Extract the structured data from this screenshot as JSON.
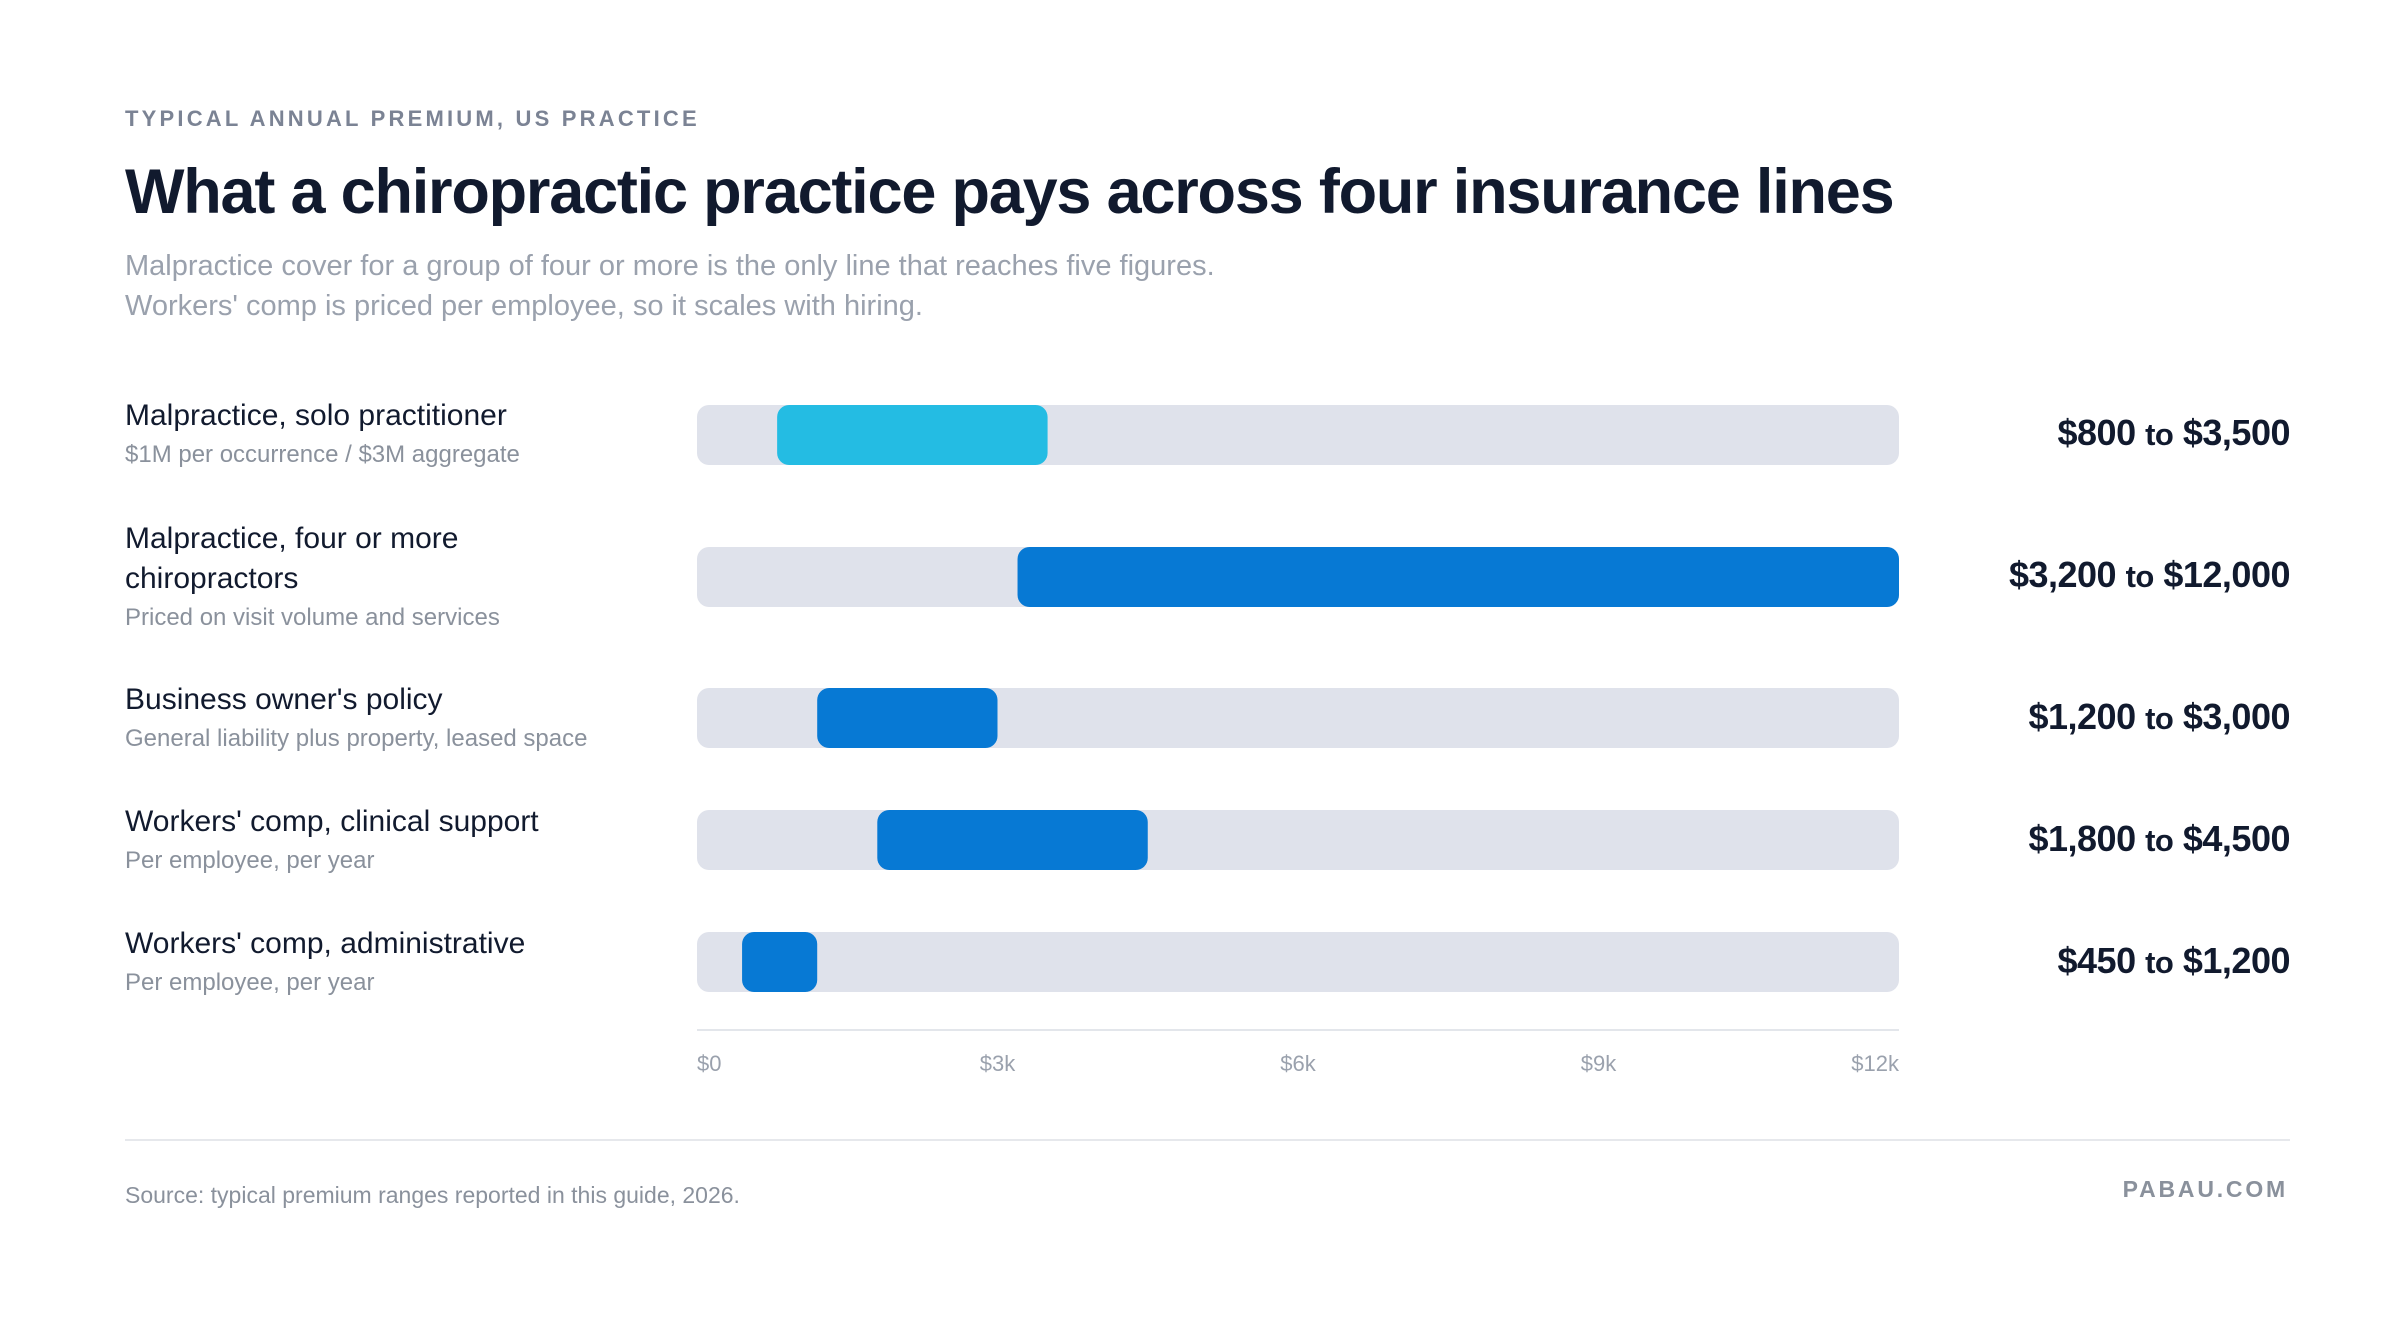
{
  "eyebrow": "TYPICAL ANNUAL PREMIUM, US PRACTICE",
  "title": "What a chiropractic practice pays across four insurance lines",
  "subtitle": [
    "Malpractice cover for a group of four or more is the only line that reaches five figures.",
    "Workers' comp is priced per employee, so it scales with hiring."
  ],
  "rows": [
    {
      "label": "Malpractice, solo practitioner",
      "sub": "$1M per occurrence / $3M aggregate",
      "from": "$800",
      "joiner": "to",
      "to": "$3,500"
    },
    {
      "label": "Malpractice, four or more chiropractors",
      "sub": "Priced on visit volume and services",
      "from": "$3,200",
      "joiner": "to",
      "to": "$12,000"
    },
    {
      "label": "Business owner's policy",
      "sub": "General liability plus property, leased space",
      "from": "$1,200",
      "joiner": "to",
      "to": "$3,000"
    },
    {
      "label": "Workers' comp, clinical support",
      "sub": "Per employee, per year",
      "from": "$1,800",
      "joiner": "to",
      "to": "$4,500"
    },
    {
      "label": "Workers' comp, administrative",
      "sub": "Per employee, per year",
      "from": "$450",
      "joiner": "to",
      "to": "$1,200"
    }
  ],
  "chart_data": {
    "type": "range-bar",
    "categories": [
      "Malpractice, solo practitioner",
      "Malpractice, four or more chiropractors",
      "Business owner's policy",
      "Workers' comp, clinical support",
      "Workers' comp, administrative"
    ],
    "low": [
      800,
      3200,
      1200,
      1800,
      450
    ],
    "high": [
      3500,
      12000,
      3000,
      4500,
      1200
    ],
    "colors": [
      "#24bce3",
      "#0779d4",
      "#0779d4",
      "#0779d4",
      "#0779d4"
    ],
    "track_color": "#dfe2eb",
    "xlim": [
      0,
      12000
    ],
    "ticks": [
      0,
      3000,
      6000,
      9000,
      12000
    ],
    "tick_labels": [
      "$0",
      "$3k",
      "$6k",
      "$9k",
      "$12k"
    ],
    "grid": false
  },
  "footer": {
    "source": "Source: typical premium ranges reported in this guide, 2026.",
    "brand": "PABAU.COM"
  }
}
